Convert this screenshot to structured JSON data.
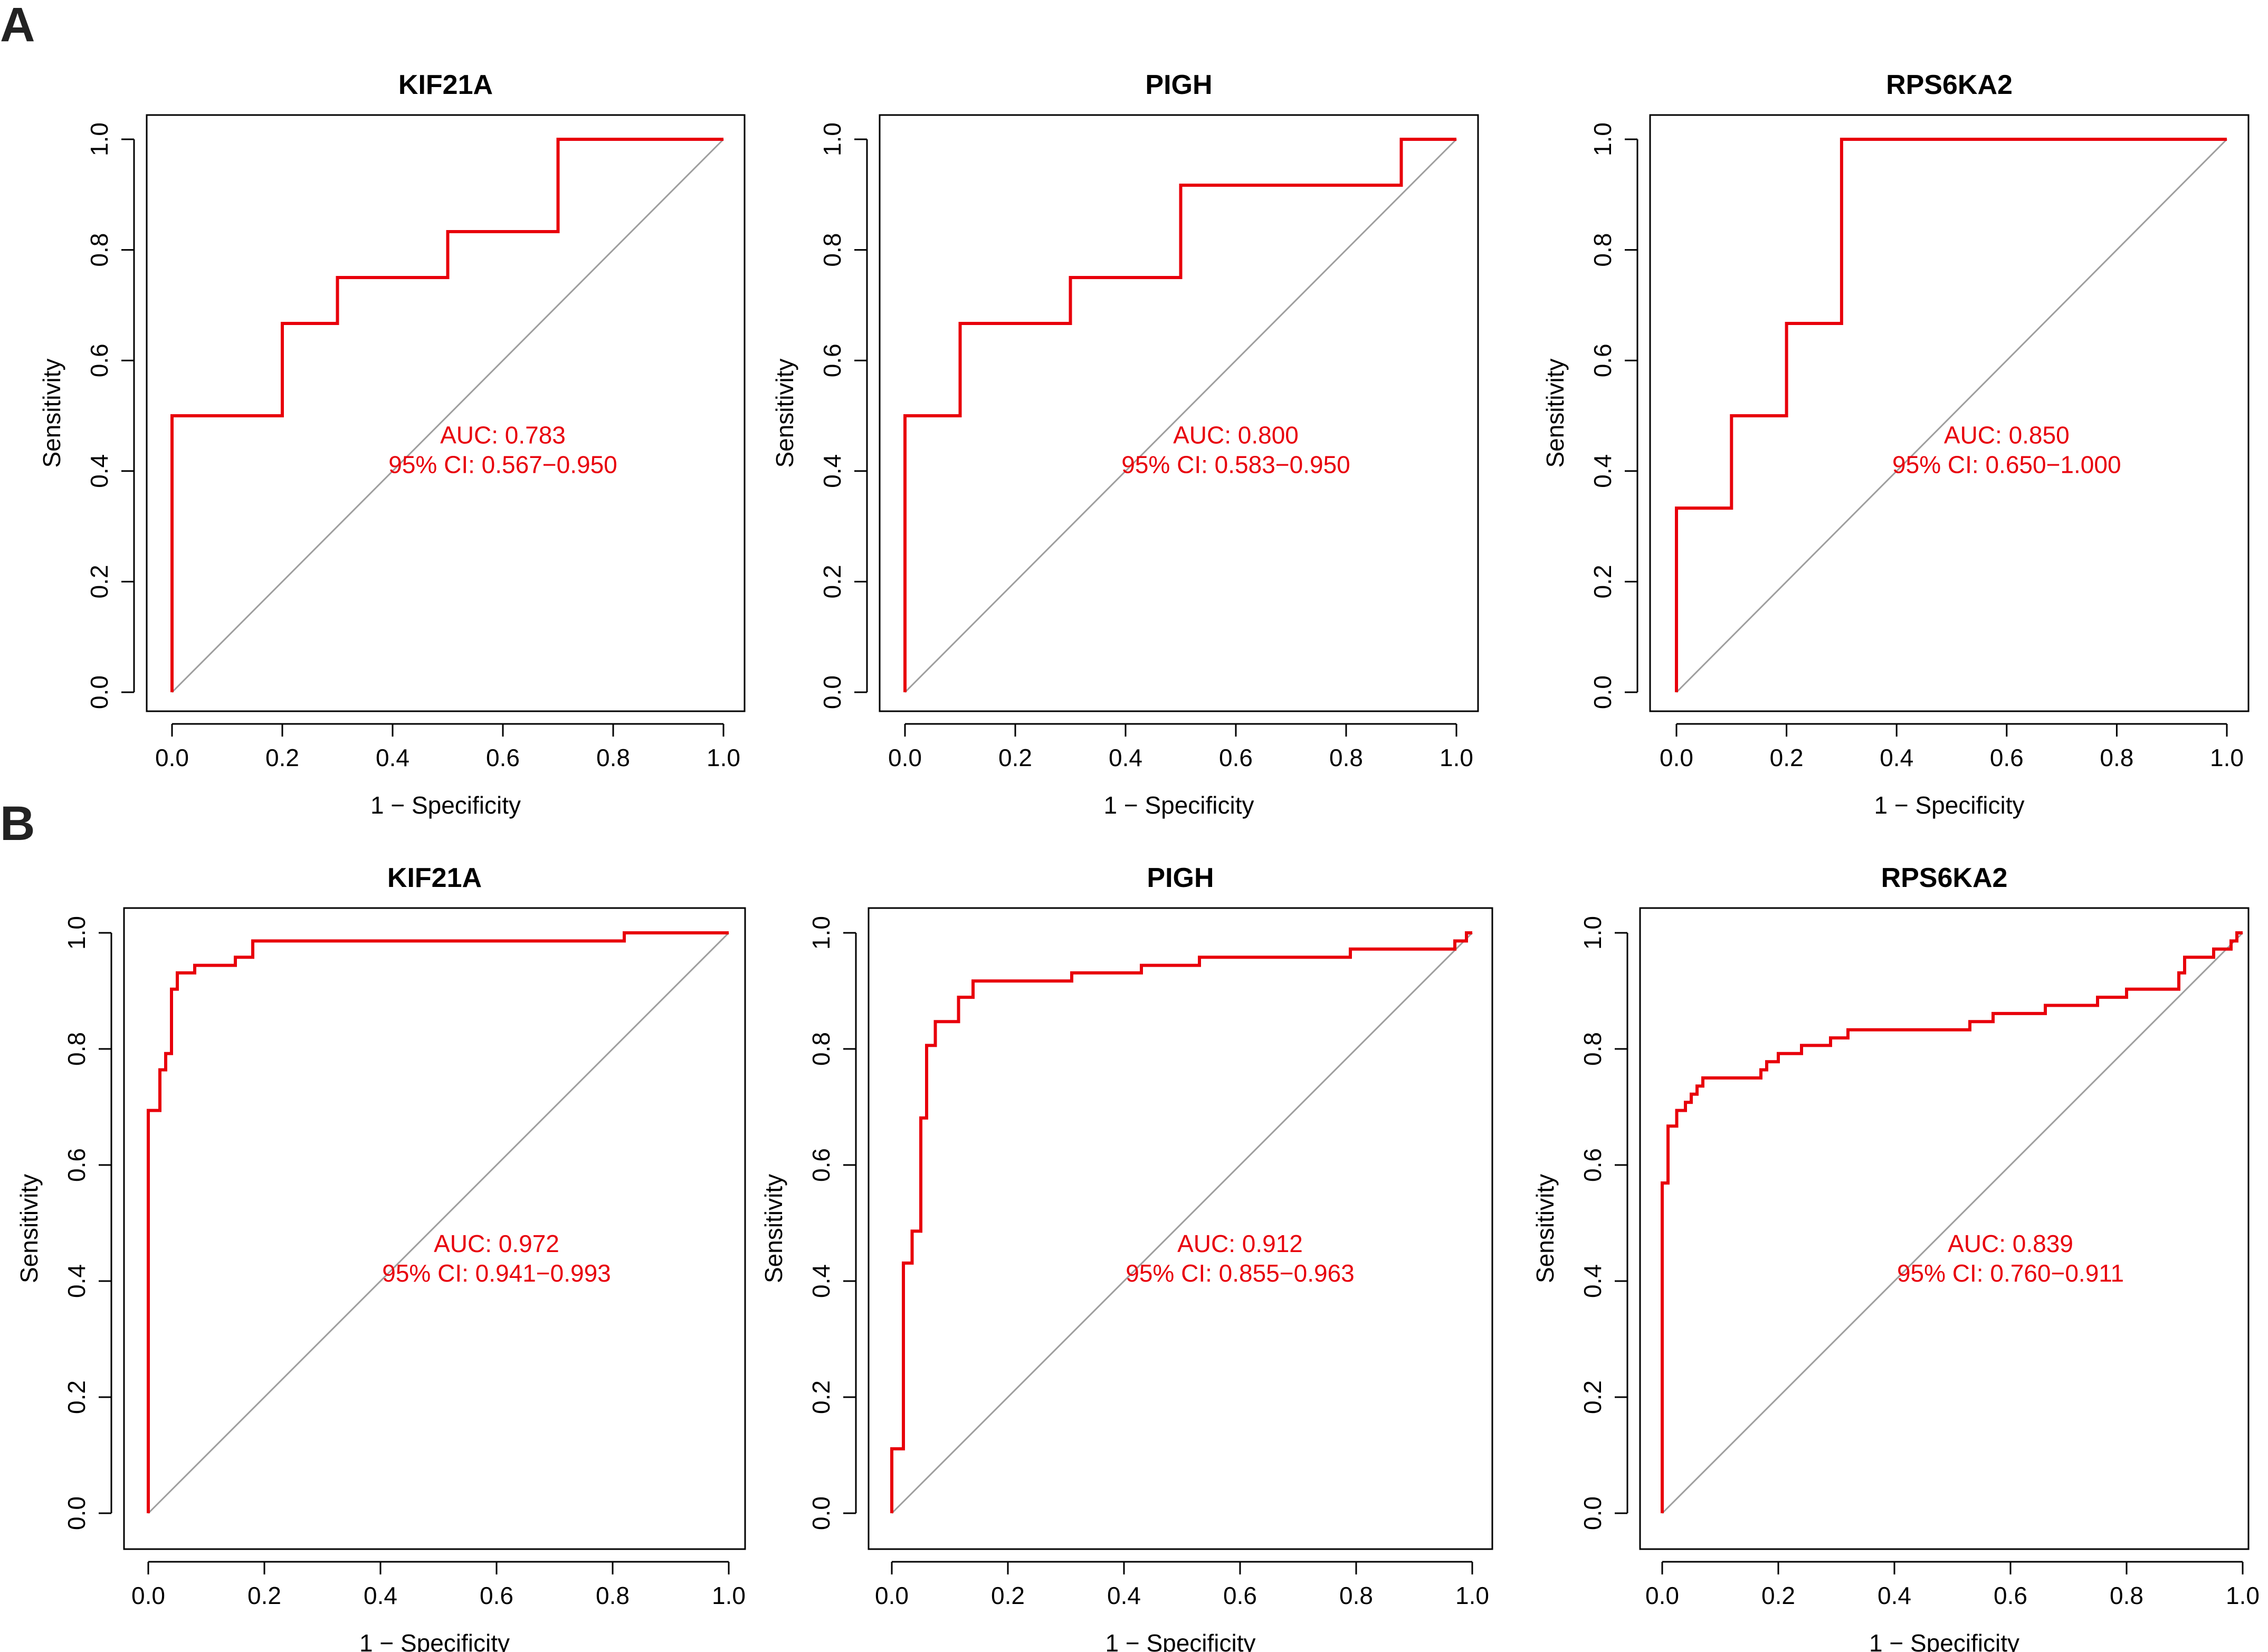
{
  "panel_labels": [
    "A",
    "B"
  ],
  "colors": {
    "roc": "#e8000b",
    "diagonal": "#9e9e9e",
    "axis": "#000000"
  },
  "chart_data": [
    {
      "type": "line",
      "panel": "A",
      "title": "KIF21A",
      "xlabel": "1 − Specificity",
      "ylabel": "Sensitivity",
      "xlim": [
        0,
        1
      ],
      "ylim": [
        0,
        1
      ],
      "x_ticks": [
        "0.0",
        "0.2",
        "0.4",
        "0.6",
        "0.8",
        "1.0"
      ],
      "y_ticks": [
        "0.0",
        "0.2",
        "0.4",
        "0.6",
        "0.8",
        "1.0"
      ],
      "auc_text": "AUC: 0.783",
      "ci_text": "95% CI: 0.567−0.950",
      "series": [
        {
          "name": "ROC",
          "points": [
            [
              0,
              0
            ],
            [
              0,
              0.5
            ],
            [
              0.2,
              0.5
            ],
            [
              0.2,
              0.667
            ],
            [
              0.3,
              0.667
            ],
            [
              0.3,
              0.75
            ],
            [
              0.5,
              0.75
            ],
            [
              0.5,
              0.833
            ],
            [
              0.7,
              0.833
            ],
            [
              0.7,
              1.0
            ],
            [
              1.0,
              1.0
            ]
          ]
        }
      ]
    },
    {
      "type": "line",
      "panel": "A",
      "title": "PIGH",
      "xlabel": "1 − Specificity",
      "ylabel": "Sensitivity",
      "xlim": [
        0,
        1
      ],
      "ylim": [
        0,
        1
      ],
      "x_ticks": [
        "0.0",
        "0.2",
        "0.4",
        "0.6",
        "0.8",
        "1.0"
      ],
      "y_ticks": [
        "0.0",
        "0.2",
        "0.4",
        "0.6",
        "0.8",
        "1.0"
      ],
      "auc_text": "AUC: 0.800",
      "ci_text": "95% CI: 0.583−0.950",
      "series": [
        {
          "name": "ROC",
          "points": [
            [
              0,
              0
            ],
            [
              0,
              0.5
            ],
            [
              0.1,
              0.5
            ],
            [
              0.1,
              0.667
            ],
            [
              0.3,
              0.667
            ],
            [
              0.3,
              0.75
            ],
            [
              0.5,
              0.75
            ],
            [
              0.5,
              0.917
            ],
            [
              0.9,
              0.917
            ],
            [
              0.9,
              1.0
            ],
            [
              1.0,
              1.0
            ]
          ]
        }
      ]
    },
    {
      "type": "line",
      "panel": "A",
      "title": "RPS6KA2",
      "xlabel": "1 − Specificity",
      "ylabel": "Sensitivity",
      "xlim": [
        0,
        1
      ],
      "ylim": [
        0,
        1
      ],
      "x_ticks": [
        "0.0",
        "0.2",
        "0.4",
        "0.6",
        "0.8",
        "1.0"
      ],
      "y_ticks": [
        "0.0",
        "0.2",
        "0.4",
        "0.6",
        "0.8",
        "1.0"
      ],
      "auc_text": "AUC: 0.850",
      "ci_text": "95% CI: 0.650−1.000",
      "series": [
        {
          "name": "ROC",
          "points": [
            [
              0,
              0
            ],
            [
              0,
              0.333
            ],
            [
              0.1,
              0.333
            ],
            [
              0.1,
              0.5
            ],
            [
              0.2,
              0.5
            ],
            [
              0.2,
              0.667
            ],
            [
              0.3,
              0.667
            ],
            [
              0.3,
              1.0
            ],
            [
              1.0,
              1.0
            ]
          ]
        }
      ]
    },
    {
      "type": "line",
      "panel": "B",
      "title": "KIF21A",
      "xlabel": "1 − Specificity",
      "ylabel": "Sensitivity",
      "xlim": [
        0,
        1
      ],
      "ylim": [
        0,
        1
      ],
      "x_ticks": [
        "0.0",
        "0.2",
        "0.4",
        "0.6",
        "0.8",
        "1.0"
      ],
      "y_ticks": [
        "0.0",
        "0.2",
        "0.4",
        "0.6",
        "0.8",
        "1.0"
      ],
      "auc_text": "AUC: 0.972",
      "ci_text": "95% CI: 0.941−0.993",
      "series": [
        {
          "name": "ROC",
          "points": [
            [
              0,
              0
            ],
            [
              0,
              0.694
            ],
            [
              0.02,
              0.694
            ],
            [
              0.02,
              0.764
            ],
            [
              0.03,
              0.764
            ],
            [
              0.03,
              0.792
            ],
            [
              0.04,
              0.792
            ],
            [
              0.04,
              0.903
            ],
            [
              0.05,
              0.903
            ],
            [
              0.05,
              0.931
            ],
            [
              0.08,
              0.931
            ],
            [
              0.08,
              0.944
            ],
            [
              0.15,
              0.944
            ],
            [
              0.15,
              0.958
            ],
            [
              0.18,
              0.958
            ],
            [
              0.18,
              0.986
            ],
            [
              0.82,
              0.986
            ],
            [
              0.82,
              1.0
            ],
            [
              1.0,
              1.0
            ]
          ]
        }
      ]
    },
    {
      "type": "line",
      "panel": "B",
      "title": "PIGH",
      "xlabel": "1 − Specificity",
      "ylabel": "Sensitivity",
      "xlim": [
        0,
        1
      ],
      "ylim": [
        0,
        1
      ],
      "x_ticks": [
        "0.0",
        "0.2",
        "0.4",
        "0.6",
        "0.8",
        "1.0"
      ],
      "y_ticks": [
        "0.0",
        "0.2",
        "0.4",
        "0.6",
        "0.8",
        "1.0"
      ],
      "auc_text": "AUC: 0.912",
      "ci_text": "95% CI: 0.855−0.963",
      "series": [
        {
          "name": "ROC",
          "points": [
            [
              0,
              0
            ],
            [
              0,
              0.111
            ],
            [
              0.02,
              0.111
            ],
            [
              0.02,
              0.431
            ],
            [
              0.035,
              0.431
            ],
            [
              0.035,
              0.486
            ],
            [
              0.05,
              0.486
            ],
            [
              0.05,
              0.681
            ],
            [
              0.06,
              0.681
            ],
            [
              0.06,
              0.806
            ],
            [
              0.075,
              0.806
            ],
            [
              0.075,
              0.847
            ],
            [
              0.115,
              0.847
            ],
            [
              0.115,
              0.889
            ],
            [
              0.14,
              0.889
            ],
            [
              0.14,
              0.917
            ],
            [
              0.31,
              0.917
            ],
            [
              0.31,
              0.931
            ],
            [
              0.43,
              0.931
            ],
            [
              0.43,
              0.944
            ],
            [
              0.53,
              0.944
            ],
            [
              0.53,
              0.958
            ],
            [
              0.79,
              0.958
            ],
            [
              0.79,
              0.972
            ],
            [
              0.97,
              0.972
            ],
            [
              0.97,
              0.986
            ],
            [
              0.99,
              0.986
            ],
            [
              0.99,
              1.0
            ],
            [
              1.0,
              1.0
            ]
          ]
        }
      ]
    },
    {
      "type": "line",
      "panel": "B",
      "title": "RPS6KA2",
      "xlabel": "1 − Specificity",
      "ylabel": "Sensitivity",
      "xlim": [
        0,
        1
      ],
      "ylim": [
        0,
        1
      ],
      "x_ticks": [
        "0.0",
        "0.2",
        "0.4",
        "0.6",
        "0.8",
        "1.0"
      ],
      "y_ticks": [
        "0.0",
        "0.2",
        "0.4",
        "0.6",
        "0.8",
        "1.0"
      ],
      "auc_text": "AUC: 0.839",
      "ci_text": "95% CI: 0.760−0.911",
      "series": [
        {
          "name": "ROC",
          "points": [
            [
              0,
              0
            ],
            [
              0,
              0.569
            ],
            [
              0.01,
              0.569
            ],
            [
              0.01,
              0.667
            ],
            [
              0.025,
              0.667
            ],
            [
              0.025,
              0.694
            ],
            [
              0.04,
              0.694
            ],
            [
              0.04,
              0.708
            ],
            [
              0.05,
              0.708
            ],
            [
              0.05,
              0.722
            ],
            [
              0.06,
              0.722
            ],
            [
              0.06,
              0.736
            ],
            [
              0.07,
              0.736
            ],
            [
              0.07,
              0.75
            ],
            [
              0.17,
              0.75
            ],
            [
              0.17,
              0.764
            ],
            [
              0.18,
              0.764
            ],
            [
              0.18,
              0.778
            ],
            [
              0.2,
              0.778
            ],
            [
              0.2,
              0.792
            ],
            [
              0.24,
              0.792
            ],
            [
              0.24,
              0.806
            ],
            [
              0.29,
              0.806
            ],
            [
              0.29,
              0.819
            ],
            [
              0.32,
              0.819
            ],
            [
              0.32,
              0.833
            ],
            [
              0.53,
              0.833
            ],
            [
              0.53,
              0.847
            ],
            [
              0.57,
              0.847
            ],
            [
              0.57,
              0.861
            ],
            [
              0.66,
              0.861
            ],
            [
              0.66,
              0.875
            ],
            [
              0.75,
              0.875
            ],
            [
              0.75,
              0.889
            ],
            [
              0.8,
              0.889
            ],
            [
              0.8,
              0.903
            ],
            [
              0.89,
              0.903
            ],
            [
              0.89,
              0.931
            ],
            [
              0.9,
              0.931
            ],
            [
              0.9,
              0.958
            ],
            [
              0.95,
              0.958
            ],
            [
              0.95,
              0.972
            ],
            [
              0.98,
              0.972
            ],
            [
              0.98,
              0.986
            ],
            [
              0.99,
              0.986
            ],
            [
              0.99,
              1.0
            ],
            [
              1.0,
              1.0
            ]
          ]
        }
      ]
    }
  ]
}
